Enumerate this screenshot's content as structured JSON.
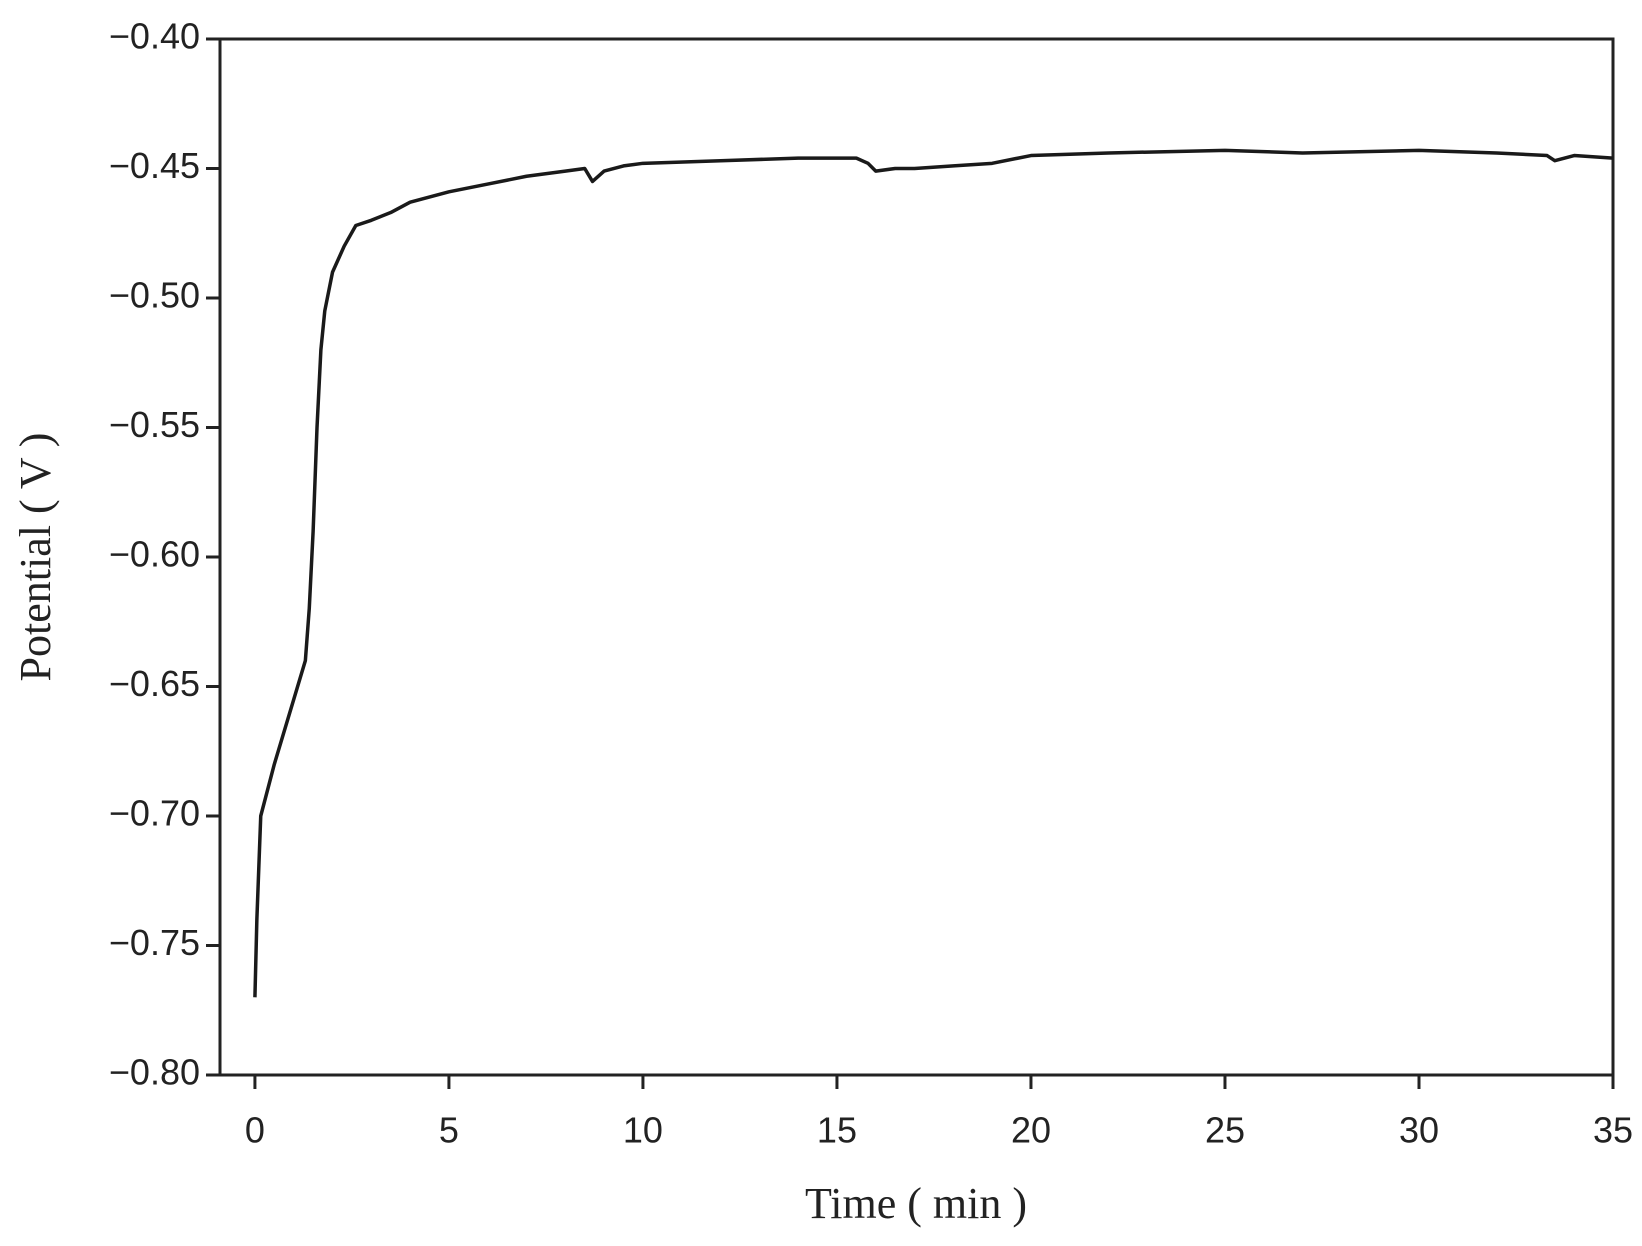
{
  "chart_data": {
    "type": "line",
    "x_label": "Time ( min )",
    "y_label": "Potential ( V )",
    "x": [
      0,
      0.05,
      0.15,
      0.5,
      1.0,
      1.3,
      1.4,
      1.5,
      1.6,
      1.7,
      1.8,
      2.0,
      2.3,
      2.6,
      3.0,
      3.5,
      4,
      5,
      6,
      7,
      8,
      8.5,
      8.7,
      9.0,
      9.5,
      10,
      12,
      14,
      15.5,
      15.8,
      16.0,
      16.5,
      17,
      18,
      19,
      20,
      22,
      25,
      27,
      30,
      32,
      33.3,
      33.5,
      34,
      35
    ],
    "series": [
      {
        "name": "Potential",
        "color": "#1a1a1a",
        "values": [
          -0.77,
          -0.74,
          -0.7,
          -0.68,
          -0.655,
          -0.64,
          -0.62,
          -0.59,
          -0.55,
          -0.52,
          -0.505,
          -0.49,
          -0.48,
          -0.472,
          -0.47,
          -0.467,
          -0.463,
          -0.459,
          -0.456,
          -0.453,
          -0.451,
          -0.45,
          -0.455,
          -0.451,
          -0.449,
          -0.448,
          -0.447,
          -0.446,
          -0.446,
          -0.448,
          -0.451,
          -0.45,
          -0.45,
          -0.449,
          -0.448,
          -0.445,
          -0.444,
          -0.443,
          -0.444,
          -0.443,
          -0.444,
          -0.445,
          -0.447,
          -0.445,
          -0.446
        ]
      }
    ],
    "xlim": [
      -0.9,
      35
    ],
    "ylim": [
      -0.8,
      -0.4
    ],
    "xticks": [
      0,
      5,
      10,
      15,
      20,
      25,
      30,
      35
    ],
    "yticks": [
      {
        "value": -0.8,
        "label": "−0.80"
      },
      {
        "value": -0.75,
        "label": "−0.75"
      },
      {
        "value": -0.7,
        "label": "−0.70"
      },
      {
        "value": -0.65,
        "label": "−0.65"
      },
      {
        "value": -0.6,
        "label": "−0.60"
      },
      {
        "value": -0.55,
        "label": "−0.55"
      },
      {
        "value": -0.5,
        "label": "−0.50"
      },
      {
        "value": -0.45,
        "label": "−0.45"
      },
      {
        "value": -0.4,
        "label": "−0.40"
      }
    ],
    "grid": false
  }
}
